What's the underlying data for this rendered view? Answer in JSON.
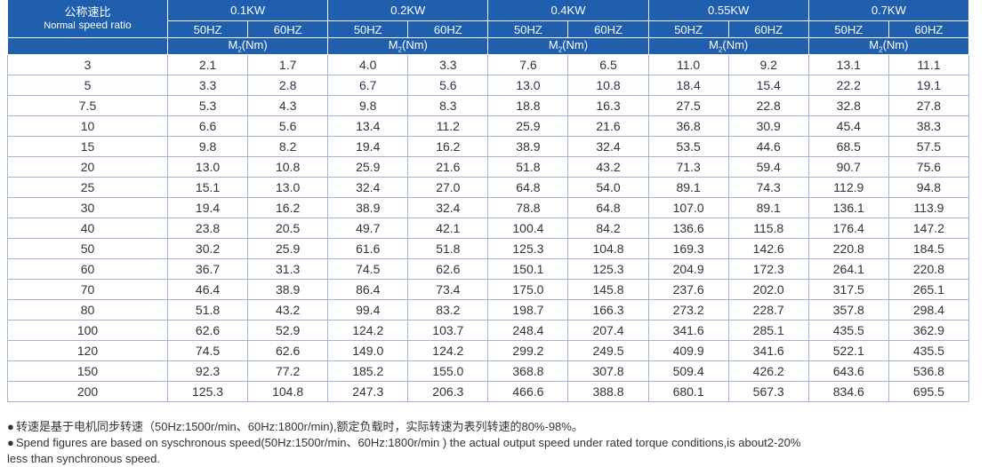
{
  "header": {
    "ratio_cn": "公称速比",
    "ratio_en_small": "Normal",
    "ratio_en": "speed ratio",
    "powers": [
      "0.1KW",
      "0.2KW",
      "0.4KW",
      "0.55KW",
      "0.7KW"
    ],
    "freq_50": "50HZ",
    "freq_60": "60HZ",
    "torque_label_pre": "M",
    "torque_label_sub": "2",
    "torque_label_post": "(Nm)"
  },
  "rows": [
    {
      "ratio": "3",
      "v": [
        "2.1",
        "1.7",
        "4.0",
        "3.3",
        "7.6",
        "6.5",
        "11.0",
        "9.2",
        "13.1",
        "11.1"
      ]
    },
    {
      "ratio": "5",
      "v": [
        "3.3",
        "2.8",
        "6.7",
        "5.6",
        "13.0",
        "10.8",
        "18.4",
        "15.4",
        "22.2",
        "19.1"
      ]
    },
    {
      "ratio": "7.5",
      "v": [
        "5.3",
        "4.3",
        "9.8",
        "8.3",
        "18.8",
        "16.3",
        "27.5",
        "22.8",
        "32.8",
        "27.8"
      ]
    },
    {
      "ratio": "10",
      "v": [
        "6.6",
        "5.6",
        "13.4",
        "11.2",
        "25.9",
        "21.6",
        "36.8",
        "30.9",
        "45.4",
        "38.3"
      ]
    },
    {
      "ratio": "15",
      "v": [
        "9.8",
        "8.2",
        "19.4",
        "16.2",
        "38.9",
        "32.4",
        "53.5",
        "44.6",
        "68.5",
        "57.5"
      ]
    },
    {
      "ratio": "20",
      "v": [
        "13.0",
        "10.8",
        "25.9",
        "21.6",
        "51.8",
        "43.2",
        "71.3",
        "59.4",
        "90.7",
        "75.6"
      ]
    },
    {
      "ratio": "25",
      "v": [
        "15.1",
        "13.0",
        "32.4",
        "27.0",
        "64.8",
        "54.0",
        "89.1",
        "74.3",
        "112.9",
        "94.8"
      ]
    },
    {
      "ratio": "30",
      "v": [
        "19.4",
        "16.2",
        "38.9",
        "32.4",
        "78.8",
        "64.8",
        "107.0",
        "89.1",
        "136.1",
        "113.9"
      ]
    },
    {
      "ratio": "40",
      "v": [
        "23.8",
        "20.5",
        "49.7",
        "42.1",
        "100.4",
        "84.2",
        "136.6",
        "115.8",
        "176.4",
        "147.2"
      ]
    },
    {
      "ratio": "50",
      "v": [
        "30.2",
        "25.9",
        "61.6",
        "51.8",
        "125.3",
        "104.8",
        "169.3",
        "142.6",
        "220.8",
        "184.5"
      ]
    },
    {
      "ratio": "60",
      "v": [
        "36.7",
        "31.3",
        "74.5",
        "62.6",
        "150.1",
        "125.3",
        "204.9",
        "172.3",
        "264.1",
        "220.8"
      ]
    },
    {
      "ratio": "70",
      "v": [
        "46.4",
        "38.9",
        "86.4",
        "73.4",
        "175.0",
        "145.8",
        "237.6",
        "202.0",
        "317.5",
        "265.1"
      ]
    },
    {
      "ratio": "80",
      "v": [
        "51.8",
        "43.2",
        "99.4",
        "83.2",
        "198.7",
        "166.3",
        "273.2",
        "228.7",
        "357.8",
        "298.4"
      ]
    },
    {
      "ratio": "100",
      "v": [
        "62.6",
        "52.9",
        "124.2",
        "103.7",
        "248.4",
        "207.4",
        "341.6",
        "285.1",
        "435.5",
        "362.9"
      ]
    },
    {
      "ratio": "120",
      "v": [
        "74.5",
        "62.6",
        "149.0",
        "124.2",
        "299.2",
        "249.5",
        "409.9",
        "341.6",
        "522.1",
        "435.5"
      ]
    },
    {
      "ratio": "150",
      "v": [
        "92.3",
        "77.2",
        "185.2",
        "155.0",
        "368.8",
        "307.8",
        "509.4",
        "426.2",
        "643.6",
        "536.8"
      ]
    },
    {
      "ratio": "200",
      "v": [
        "125.3",
        "104.8",
        "247.3",
        "206.3",
        "466.6",
        "388.8",
        "680.1",
        "567.3",
        "834.6",
        "695.5"
      ]
    }
  ],
  "notes": {
    "bullet": "●",
    "cn": "转速是基于电机同步转速（50Hz:1500r/min、60Hz:1800r/min),额定负载时，实际转速为表列转速的80%-98%。",
    "en_line1": "Spend figures are based on syschronous speed(50Hz:1500r/min、60Hz:1800r/min ) the actual output speed under rated torque conditions,is about2-20%",
    "en_line2": "less than synchronous speed."
  }
}
